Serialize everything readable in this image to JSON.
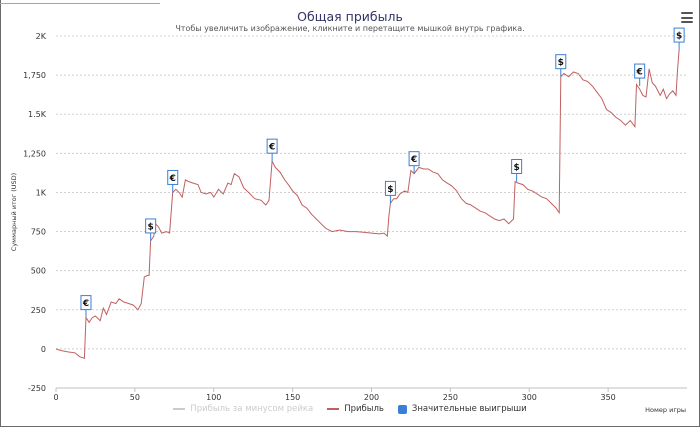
{
  "chart_data": {
    "type": "line",
    "title": "Общая прибыль",
    "subtitle": "Чтобы увеличить изображение, кликните и перетащите мышкой внутрь графика.",
    "xlabel": "Номер игры",
    "ylabel": "Суммарный итог (USD)",
    "xlim": [
      0,
      400
    ],
    "ylim": [
      -250,
      2000
    ],
    "x_ticks": [
      "0",
      "50",
      "100",
      "150",
      "200",
      "250",
      "300",
      "350"
    ],
    "x_tick_values": [
      0,
      50,
      100,
      150,
      200,
      250,
      300,
      350
    ],
    "y_ticks": [
      "-250",
      "0",
      "250",
      "500",
      "750",
      "1K",
      "1,250",
      "1.5K",
      "1,750",
      "2K"
    ],
    "y_tick_values": [
      -250,
      0,
      250,
      500,
      750,
      1000,
      1250,
      1500,
      1750,
      2000
    ],
    "series": [
      {
        "name": "Прибыль за минусом рейка",
        "color": "#cccccc",
        "visible": false,
        "points": []
      },
      {
        "name": "Прибыль",
        "color": "#c06060",
        "visible": true,
        "points": [
          [
            0,
            0
          ],
          [
            3,
            -10
          ],
          [
            8,
            -20
          ],
          [
            12,
            -25
          ],
          [
            15,
            -50
          ],
          [
            18,
            -60
          ],
          [
            19,
            200
          ],
          [
            21,
            170
          ],
          [
            23,
            200
          ],
          [
            25,
            210
          ],
          [
            28,
            180
          ],
          [
            30,
            260
          ],
          [
            32,
            220
          ],
          [
            35,
            300
          ],
          [
            38,
            290
          ],
          [
            40,
            320
          ],
          [
            43,
            300
          ],
          [
            46,
            290
          ],
          [
            49,
            280
          ],
          [
            52,
            250
          ],
          [
            54,
            290
          ],
          [
            56,
            460
          ],
          [
            58,
            470
          ],
          [
            59,
            470
          ],
          [
            60,
            690
          ],
          [
            62,
            720
          ],
          [
            63,
            800
          ],
          [
            65,
            780
          ],
          [
            67,
            740
          ],
          [
            70,
            750
          ],
          [
            72,
            740
          ],
          [
            74,
            1000
          ],
          [
            76,
            1020
          ],
          [
            78,
            1000
          ],
          [
            80,
            970
          ],
          [
            82,
            1080
          ],
          [
            84,
            1070
          ],
          [
            87,
            1060
          ],
          [
            90,
            1050
          ],
          [
            92,
            1000
          ],
          [
            95,
            990
          ],
          [
            98,
            1000
          ],
          [
            100,
            970
          ],
          [
            103,
            1020
          ],
          [
            106,
            990
          ],
          [
            109,
            1060
          ],
          [
            111,
            1050
          ],
          [
            113,
            1120
          ],
          [
            116,
            1100
          ],
          [
            119,
            1030
          ],
          [
            122,
            1000
          ],
          [
            126,
            960
          ],
          [
            130,
            950
          ],
          [
            133,
            920
          ],
          [
            135,
            950
          ],
          [
            137,
            1200
          ],
          [
            139,
            1160
          ],
          [
            142,
            1130
          ],
          [
            145,
            1080
          ],
          [
            148,
            1040
          ],
          [
            150,
            1010
          ],
          [
            153,
            980
          ],
          [
            156,
            920
          ],
          [
            159,
            900
          ],
          [
            162,
            860
          ],
          [
            165,
            830
          ],
          [
            168,
            800
          ],
          [
            171,
            770
          ],
          [
            175,
            750
          ],
          [
            180,
            760
          ],
          [
            185,
            750
          ],
          [
            190,
            750
          ],
          [
            195,
            745
          ],
          [
            200,
            740
          ],
          [
            205,
            735
          ],
          [
            208,
            740
          ],
          [
            210,
            720
          ],
          [
            211,
            850
          ],
          [
            212,
            930
          ],
          [
            214,
            960
          ],
          [
            216,
            960
          ],
          [
            218,
            990
          ],
          [
            221,
            1010
          ],
          [
            223,
            1000
          ],
          [
            225,
            1140
          ],
          [
            227,
            1120
          ],
          [
            230,
            1160
          ],
          [
            233,
            1150
          ],
          [
            236,
            1150
          ],
          [
            239,
            1130
          ],
          [
            242,
            1120
          ],
          [
            245,
            1080
          ],
          [
            248,
            1060
          ],
          [
            251,
            1040
          ],
          [
            254,
            1010
          ],
          [
            257,
            960
          ],
          [
            260,
            930
          ],
          [
            263,
            920
          ],
          [
            266,
            900
          ],
          [
            269,
            880
          ],
          [
            272,
            870
          ],
          [
            275,
            850
          ],
          [
            278,
            830
          ],
          [
            281,
            820
          ],
          [
            284,
            830
          ],
          [
            287,
            800
          ],
          [
            290,
            830
          ],
          [
            291,
            1070
          ],
          [
            293,
            1060
          ],
          [
            296,
            1050
          ],
          [
            299,
            1020
          ],
          [
            302,
            1010
          ],
          [
            305,
            990
          ],
          [
            308,
            970
          ],
          [
            311,
            960
          ],
          [
            314,
            930
          ],
          [
            317,
            900
          ],
          [
            319,
            870
          ],
          [
            320,
            1740
          ],
          [
            322,
            1760
          ],
          [
            325,
            1740
          ],
          [
            328,
            1770
          ],
          [
            331,
            1760
          ],
          [
            334,
            1720
          ],
          [
            337,
            1710
          ],
          [
            340,
            1680
          ],
          [
            343,
            1640
          ],
          [
            346,
            1600
          ],
          [
            349,
            1530
          ],
          [
            352,
            1510
          ],
          [
            355,
            1480
          ],
          [
            358,
            1460
          ],
          [
            361,
            1430
          ],
          [
            364,
            1460
          ],
          [
            367,
            1420
          ],
          [
            368,
            1690
          ],
          [
            370,
            1660
          ],
          [
            372,
            1620
          ],
          [
            374,
            1610
          ],
          [
            376,
            1790
          ],
          [
            378,
            1700
          ],
          [
            380,
            1680
          ],
          [
            383,
            1620
          ],
          [
            385,
            1660
          ],
          [
            387,
            1600
          ],
          [
            389,
            1630
          ],
          [
            391,
            1650
          ],
          [
            393,
            1620
          ],
          [
            394,
            1780
          ],
          [
            395,
            1910
          ]
        ]
      }
    ],
    "flags": {
      "name": "Значительные выигрыши",
      "color": "#3a7fd5",
      "items": [
        {
          "x": 19,
          "y": 200,
          "label": "€"
        },
        {
          "x": 60,
          "y": 690,
          "label": "$"
        },
        {
          "x": 74,
          "y": 1000,
          "label": "€"
        },
        {
          "x": 137,
          "y": 1200,
          "label": "€"
        },
        {
          "x": 212,
          "y": 930,
          "label": "$"
        },
        {
          "x": 227,
          "y": 1120,
          "label": "€"
        },
        {
          "x": 292,
          "y": 1070,
          "label": "$"
        },
        {
          "x": 320,
          "y": 1740,
          "label": "$"
        },
        {
          "x": 370,
          "y": 1680,
          "label": "€"
        },
        {
          "x": 395,
          "y": 1910,
          "label": "$"
        }
      ]
    }
  }
}
